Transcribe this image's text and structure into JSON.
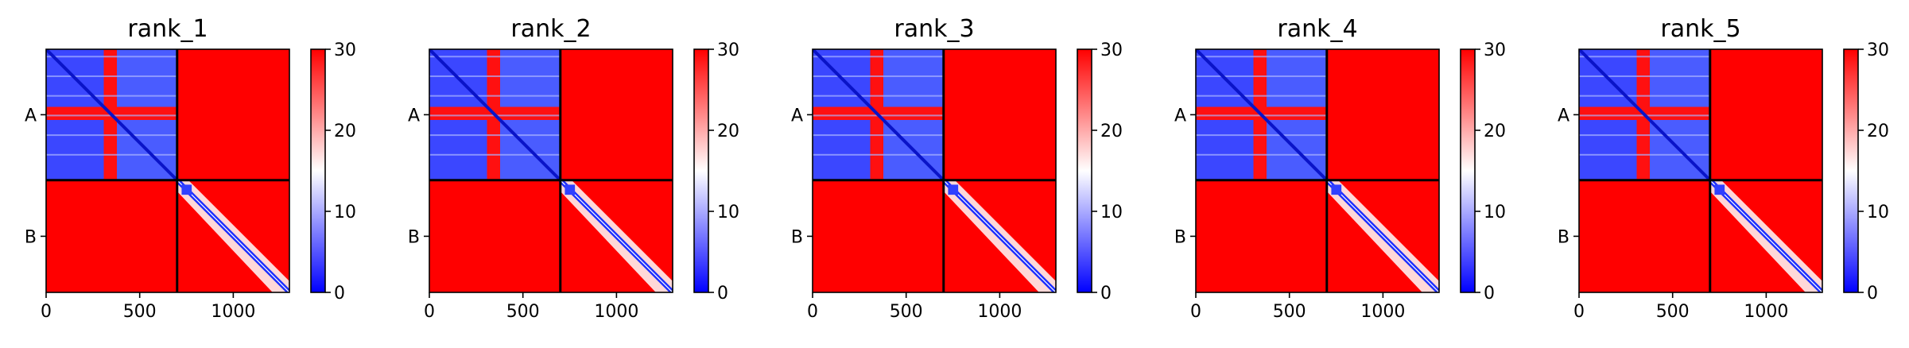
{
  "chart_data": [
    {
      "type": "heatmap",
      "title": "rank_1",
      "chains": [
        "A",
        "B"
      ],
      "chain_boundary": 700,
      "residues": 1300,
      "xticks": [
        0,
        500,
        1000
      ],
      "xtick_labels": [
        "0",
        "500",
        "1000"
      ],
      "ytick_labels": [
        "A",
        "B"
      ],
      "colorbar": {
        "ticks": [
          0,
          10,
          20,
          30
        ],
        "labels": [
          "0",
          "10",
          "20",
          "30"
        ],
        "range": [
          0,
          30
        ],
        "colors": [
          "#0000ff",
          "#ffffff",
          "#ff0000"
        ]
      },
      "regions": [
        {
          "rows": [
            0,
            700
          ],
          "cols": [
            0,
            700
          ],
          "note": "A-A low error blocks"
        },
        {
          "rows": [
            700,
            1300
          ],
          "cols": [
            700,
            1300
          ],
          "note": "B-B low error along diagonal"
        }
      ]
    },
    {
      "type": "heatmap",
      "title": "rank_2",
      "chains": [
        "A",
        "B"
      ],
      "chain_boundary": 700,
      "residues": 1300,
      "xticks": [
        0,
        500,
        1000
      ],
      "xtick_labels": [
        "0",
        "500",
        "1000"
      ],
      "ytick_labels": [
        "A",
        "B"
      ],
      "colorbar": {
        "ticks": [
          0,
          10,
          20,
          30
        ],
        "labels": [
          "0",
          "10",
          "20",
          "30"
        ],
        "range": [
          0,
          30
        ],
        "colors": [
          "#0000ff",
          "#ffffff",
          "#ff0000"
        ]
      }
    },
    {
      "type": "heatmap",
      "title": "rank_3",
      "chains": [
        "A",
        "B"
      ],
      "chain_boundary": 700,
      "residues": 1300,
      "xticks": [
        0,
        500,
        1000
      ],
      "xtick_labels": [
        "0",
        "500",
        "1000"
      ],
      "ytick_labels": [
        "A",
        "B"
      ],
      "colorbar": {
        "ticks": [
          0,
          10,
          20,
          30
        ],
        "labels": [
          "0",
          "10",
          "20",
          "30"
        ],
        "range": [
          0,
          30
        ],
        "colors": [
          "#0000ff",
          "#ffffff",
          "#ff0000"
        ]
      }
    },
    {
      "type": "heatmap",
      "title": "rank_4",
      "chains": [
        "A",
        "B"
      ],
      "chain_boundary": 700,
      "residues": 1300,
      "xticks": [
        0,
        500,
        1000
      ],
      "xtick_labels": [
        "0",
        "500",
        "1000"
      ],
      "ytick_labels": [
        "A",
        "B"
      ],
      "colorbar": {
        "ticks": [
          0,
          10,
          20,
          30
        ],
        "labels": [
          "0",
          "10",
          "20",
          "30"
        ],
        "range": [
          0,
          30
        ],
        "colors": [
          "#0000ff",
          "#ffffff",
          "#ff0000"
        ]
      }
    },
    {
      "type": "heatmap",
      "title": "rank_5",
      "chains": [
        "A",
        "B"
      ],
      "chain_boundary": 700,
      "residues": 1300,
      "xticks": [
        0,
        500,
        1000
      ],
      "xtick_labels": [
        "0",
        "500",
        "1000"
      ],
      "ytick_labels": [
        "A",
        "B"
      ],
      "colorbar": {
        "ticks": [
          0,
          10,
          20,
          30
        ],
        "labels": [
          "0",
          "10",
          "20",
          "30"
        ],
        "range": [
          0,
          30
        ],
        "colors": [
          "#0000ff",
          "#ffffff",
          "#ff0000"
        ]
      }
    }
  ]
}
